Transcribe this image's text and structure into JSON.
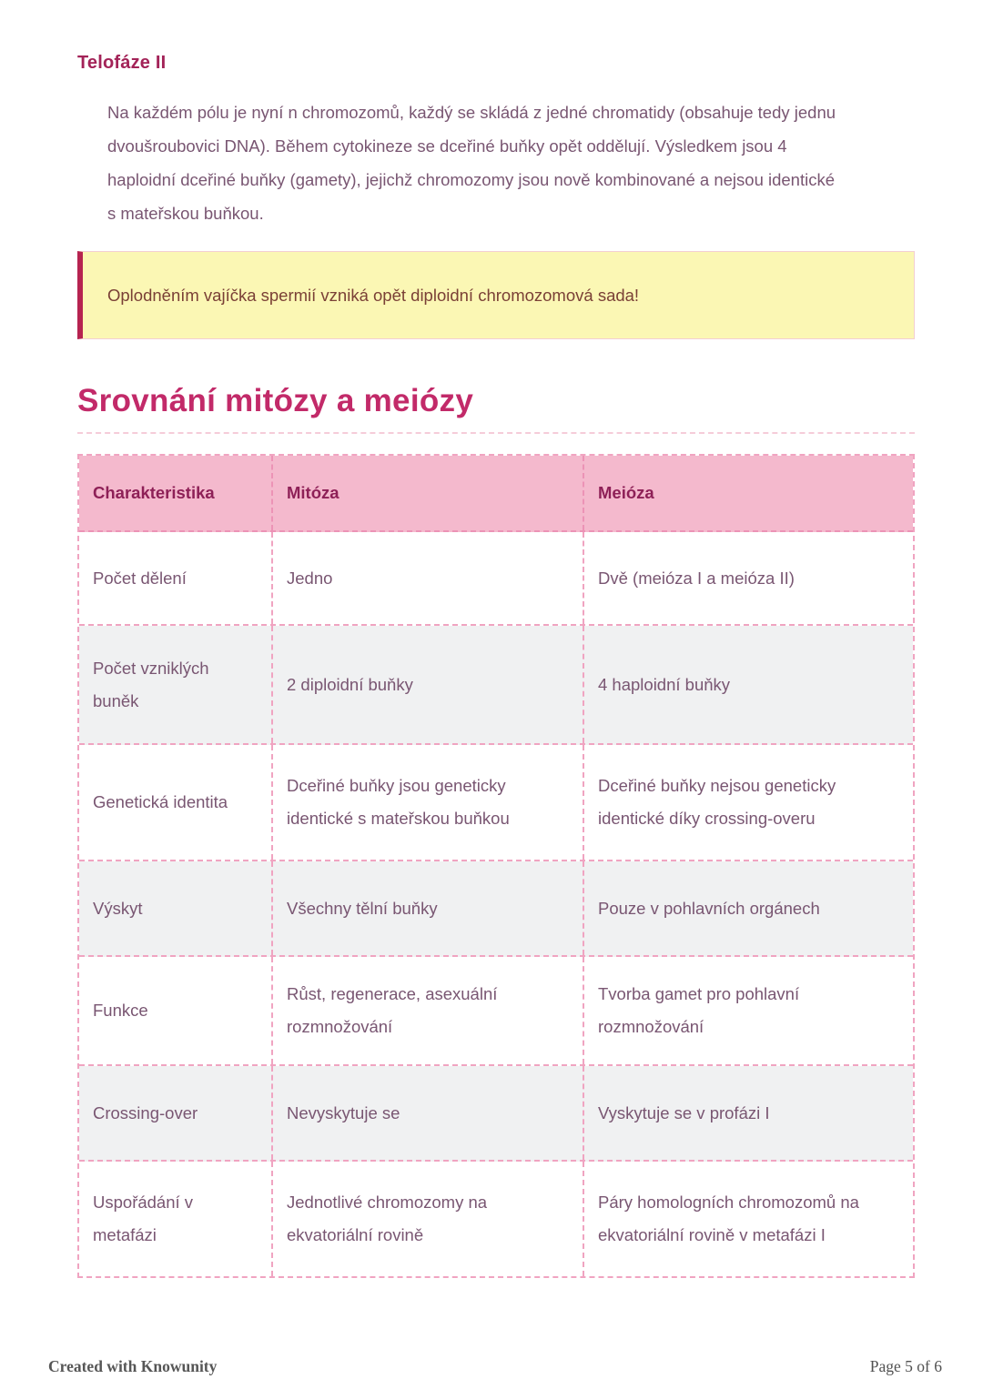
{
  "document": {
    "section": {
      "title": "Telofáze II",
      "body": "Na každém pólu je nyní n chromozomů, každý se skládá z jedné chromatidy (obsahuje tedy jednu dvoušroubovici DNA). Během cytokineze se dceřiné buňky opět oddělují. Výsledkem jsou 4 haploidní dceřiné buňky (gamety), jejichž chromozomy jsou nově kombinované a nejsou identické s mateřskou buňkou."
    },
    "callout": {
      "text": "Oplodněním vajíčka spermií vzniká opět diploidní chromozomová sada!"
    },
    "comparison": {
      "title": "Srovnání mitózy a meiózy",
      "table": {
        "columns": [
          "Charakteristika",
          "Mitóza",
          "Meióza"
        ],
        "rows": [
          [
            "Počet dělení",
            "Jedno",
            "Dvě (meióza I a meióza II)"
          ],
          [
            "Počet vzniklých buněk",
            "2 diploidní buňky",
            "4 haploidní buňky"
          ],
          [
            "Genetická identita",
            "Dceřiné buňky jsou geneticky identické s mateřskou buňkou",
            "Dceřiné buňky nejsou geneticky identické díky crossing-overu"
          ],
          [
            "Výskyt",
            "Všechny tělní buňky",
            "Pouze v pohlavních orgánech"
          ],
          [
            "Funkce",
            "Růst, regenerace, asexuální rozmnožování",
            "Tvorba gamet pro pohlavní rozmnožování"
          ],
          [
            "Crossing-over",
            "Nevyskytuje se",
            "Vyskytuje se v profázi I"
          ],
          [
            "Uspořádání v metafázi",
            "Jednotlivé chromozomy na ekvatoriální rovině",
            "Páry homologních chromozomů na ekvatoriální rovině v metafázi I"
          ]
        ]
      }
    },
    "footer": {
      "created_with": "Created with Knowunity",
      "page": "Page 5 of 6"
    }
  },
  "colors": {
    "main_heading": "#c22a69",
    "section_heading": "#a32358",
    "body_text": "#795672",
    "table_header_bg": "#f4b9cd",
    "table_header_text": "#8e2057",
    "table_dashed_border": "#f0a4c1",
    "table_alt_row_bg": "#f0f1f2",
    "callout_bg": "#fbf7b4",
    "callout_border": "#b62350",
    "callout_text": "#7a4036",
    "footer_text": "#4d4d4d"
  }
}
